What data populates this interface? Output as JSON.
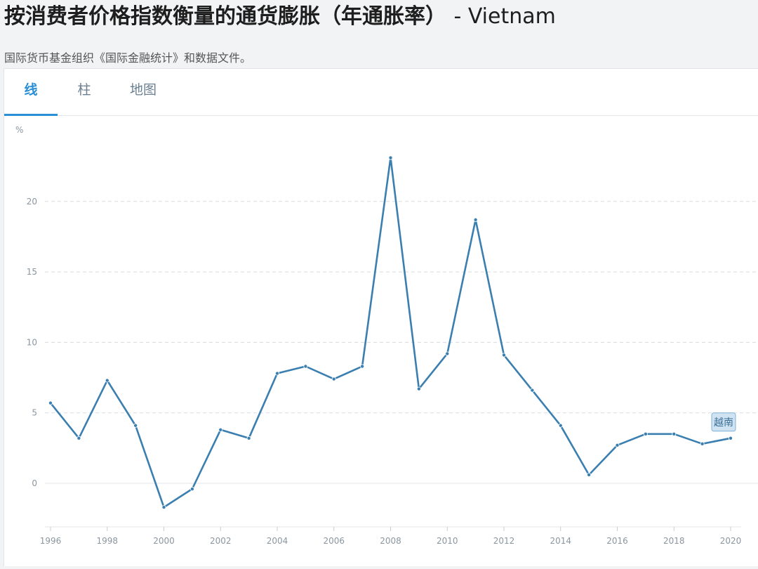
{
  "header": {
    "title": "按消费者价格指数衡量的通货膨胀（年通胀率）",
    "country": "- Vietnam",
    "source": "国际货币基金组织《国际金融统计》和数据文件。"
  },
  "tabs": [
    {
      "label": "线",
      "active": true
    },
    {
      "label": "柱",
      "active": false
    },
    {
      "label": "地图",
      "active": false
    }
  ],
  "colors": {
    "line": "#3a7fb0",
    "active_tab": "#2a8fd4",
    "grid": "#d8dce0",
    "tick_text": "#8a96a0"
  },
  "chart_data": {
    "type": "line",
    "ylabel": "%",
    "xlabel": "",
    "ylim": [
      -2.5,
      24
    ],
    "xlim": [
      1996,
      2020
    ],
    "yticks": [
      0,
      5,
      10,
      15,
      20
    ],
    "xticks": [
      1996,
      1998,
      2000,
      2002,
      2004,
      2006,
      2008,
      2010,
      2012,
      2014,
      2016,
      2018,
      2020
    ],
    "grid": true,
    "series": [
      {
        "name": "越南",
        "x": [
          1996,
          1997,
          1998,
          1999,
          2000,
          2001,
          2002,
          2003,
          2004,
          2005,
          2006,
          2007,
          2008,
          2009,
          2010,
          2011,
          2012,
          2013,
          2014,
          2015,
          2016,
          2017,
          2018,
          2019,
          2020
        ],
        "values": [
          5.7,
          3.2,
          7.3,
          4.1,
          -1.7,
          -0.4,
          3.8,
          3.2,
          7.8,
          8.3,
          7.4,
          8.3,
          23.1,
          6.7,
          9.2,
          18.7,
          9.1,
          6.6,
          4.1,
          0.6,
          2.7,
          3.5,
          3.5,
          2.8,
          3.2
        ]
      }
    ]
  }
}
